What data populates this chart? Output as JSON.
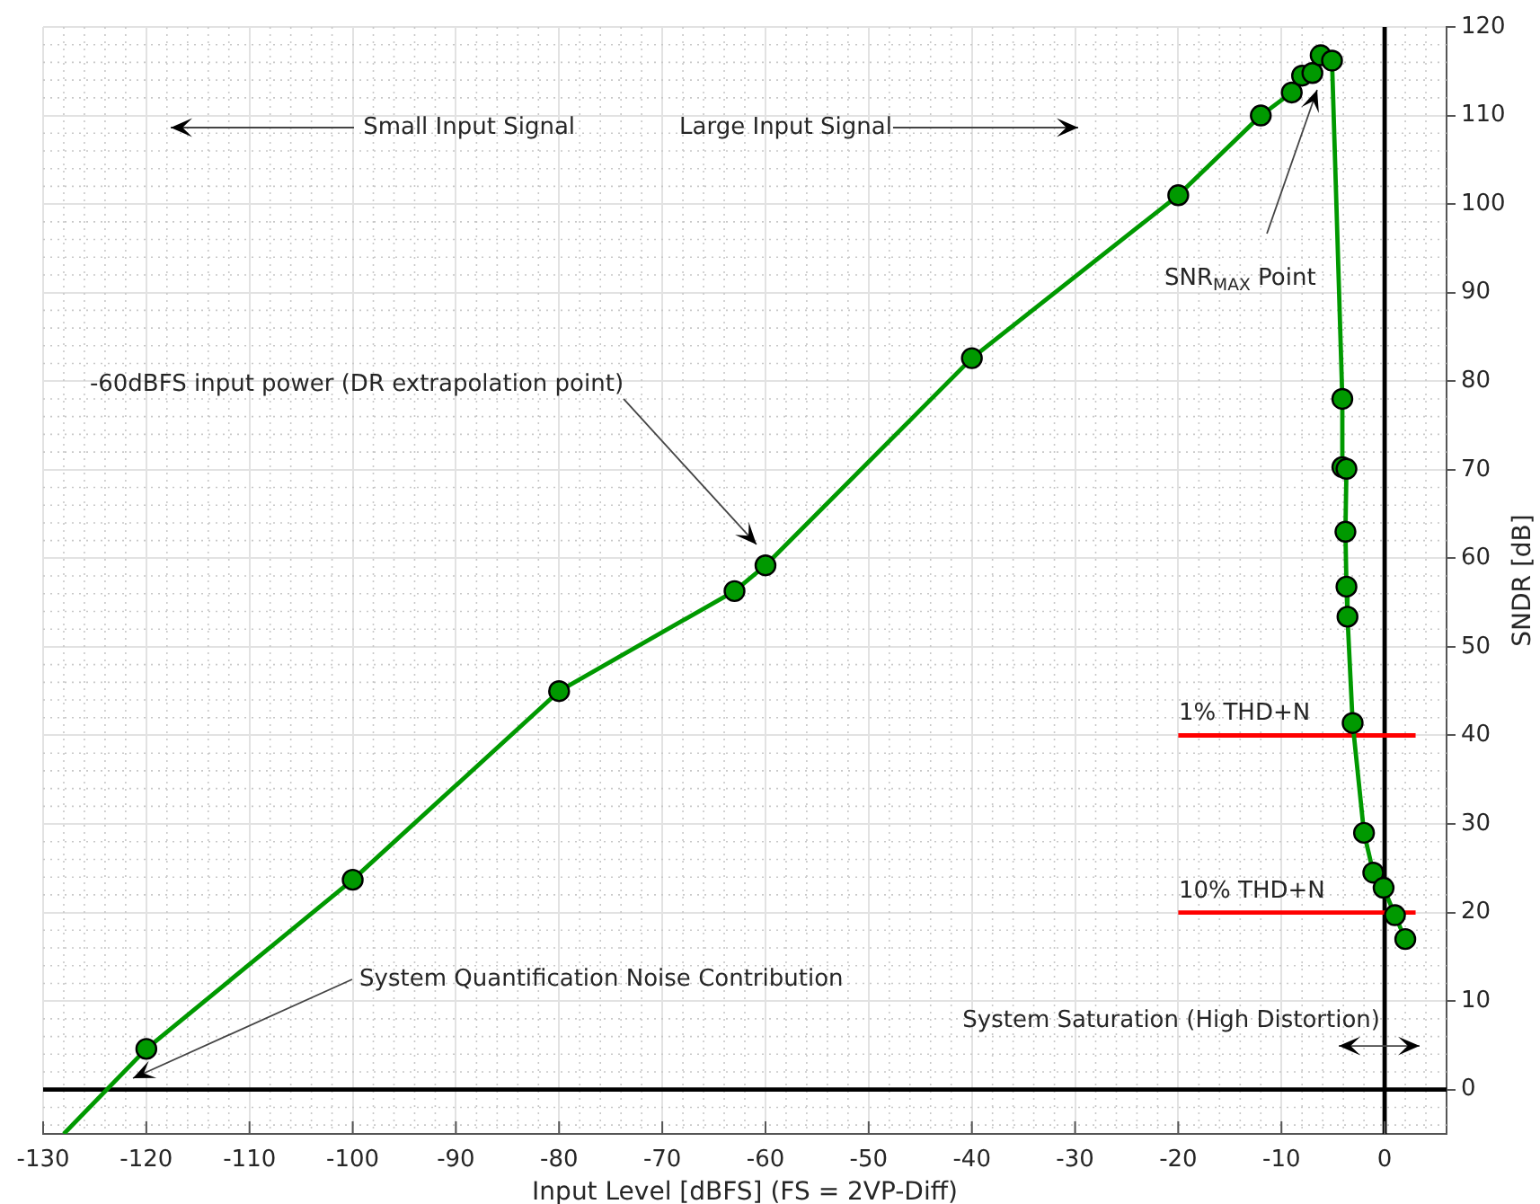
{
  "chart_data": {
    "type": "line",
    "xlabel": "Input Level [dBFS] (FS = 2VP-Diff)",
    "ylabel": "SNDR [dB]",
    "xlim": [
      -130,
      6
    ],
    "ylim": [
      -5,
      120
    ],
    "xticks": [
      -130,
      {
        "value": -128,
        "label": null
      },
      {
        "value": -126,
        "label": null
      },
      {
        "value": -124,
        "label": null
      },
      {
        "value": -122,
        "label": null
      },
      -120,
      {
        "value": -118,
        "label": null
      },
      {
        "value": -116,
        "label": null
      },
      {
        "value": -114,
        "label": null
      },
      {
        "value": -112,
        "label": null
      },
      -110,
      {
        "value": -108,
        "label": null
      },
      {
        "value": -106,
        "label": null
      },
      {
        "value": -104,
        "label": null
      },
      {
        "value": -102,
        "label": null
      },
      -100,
      {
        "value": -98,
        "label": null
      },
      {
        "value": -96,
        "label": null
      },
      {
        "value": -94,
        "label": null
      },
      {
        "value": -92,
        "label": null
      },
      -90,
      {
        "value": -88,
        "label": null
      },
      {
        "value": -86,
        "label": null
      },
      {
        "value": -84,
        "label": null
      },
      {
        "value": -82,
        "label": null
      },
      -80,
      {
        "value": -78,
        "label": null
      },
      {
        "value": -76,
        "label": null
      },
      {
        "value": -74,
        "label": null
      },
      {
        "value": -72,
        "label": null
      },
      -70,
      {
        "value": -68,
        "label": null
      },
      {
        "value": -66,
        "label": null
      },
      {
        "value": -64,
        "label": null
      },
      {
        "value": -62,
        "label": null
      },
      -60,
      {
        "value": -58,
        "label": null
      },
      {
        "value": -56,
        "label": null
      },
      {
        "value": -54,
        "label": null
      },
      {
        "value": -52,
        "label": null
      },
      -50,
      {
        "value": -48,
        "label": null
      },
      {
        "value": -46,
        "label": null
      },
      {
        "value": -44,
        "label": null
      },
      {
        "value": -42,
        "label": null
      },
      -40,
      {
        "value": -38,
        "label": null
      },
      {
        "value": -36,
        "label": null
      },
      {
        "value": -34,
        "label": null
      },
      {
        "value": -32,
        "label": null
      },
      -30,
      {
        "value": -28,
        "label": null
      },
      {
        "value": -26,
        "label": null
      },
      {
        "value": -24,
        "label": null
      },
      {
        "value": -22,
        "label": null
      },
      -20,
      {
        "value": -18,
        "label": null
      },
      {
        "value": -16,
        "label": null
      },
      {
        "value": -14,
        "label": null
      },
      {
        "value": -12,
        "label": null
      },
      -10,
      {
        "value": -8,
        "label": null
      },
      {
        "value": -6,
        "label": null
      },
      {
        "value": -4,
        "label": null
      },
      {
        "value": -2,
        "label": null
      },
      0,
      {
        "value": 2,
        "label": null
      },
      {
        "value": 4,
        "label": null
      }
    ],
    "yticks": [
      {
        "value": -4,
        "label": null
      },
      {
        "value": -2,
        "label": null
      },
      0,
      {
        "value": 2,
        "label": null
      },
      {
        "value": 4,
        "label": null
      },
      {
        "value": 6,
        "label": null
      },
      {
        "value": 8,
        "label": null
      },
      10,
      {
        "value": 12,
        "label": null
      },
      {
        "value": 14,
        "label": null
      },
      {
        "value": 16,
        "label": null
      },
      {
        "value": 18,
        "label": null
      },
      20,
      {
        "value": 22,
        "label": null
      },
      {
        "value": 24,
        "label": null
      },
      {
        "value": 26,
        "label": null
      },
      {
        "value": 28,
        "label": null
      },
      30,
      {
        "value": 32,
        "label": null
      },
      {
        "value": 34,
        "label": null
      },
      {
        "value": 36,
        "label": null
      },
      {
        "value": 38,
        "label": null
      },
      40,
      {
        "value": 42,
        "label": null
      },
      {
        "value": 44,
        "label": null
      },
      {
        "value": 46,
        "label": null
      },
      {
        "value": 48,
        "label": null
      },
      50,
      {
        "value": 52,
        "label": null
      },
      {
        "value": 54,
        "label": null
      },
      {
        "value": 56,
        "label": null
      },
      {
        "value": 58,
        "label": null
      },
      60,
      {
        "value": 62,
        "label": null
      },
      {
        "value": 64,
        "label": null
      },
      {
        "value": 66,
        "label": null
      },
      {
        "value": 68,
        "label": null
      },
      70,
      {
        "value": 72,
        "label": null
      },
      {
        "value": 74,
        "label": null
      },
      {
        "value": 76,
        "label": null
      },
      {
        "value": 78,
        "label": null
      },
      80,
      {
        "value": 82,
        "label": null
      },
      {
        "value": 84,
        "label": null
      },
      {
        "value": 86,
        "label": null
      },
      {
        "value": 88,
        "label": null
      },
      90,
      {
        "value": 92,
        "label": null
      },
      {
        "value": 94,
        "label": null
      },
      {
        "value": 96,
        "label": null
      },
      {
        "value": 98,
        "label": null
      },
      100,
      {
        "value": 102,
        "label": null
      },
      {
        "value": 104,
        "label": null
      },
      {
        "value": 106,
        "label": null
      },
      {
        "value": 108,
        "label": null
      },
      110,
      {
        "value": 112,
        "label": null
      },
      {
        "value": 114,
        "label": null
      },
      {
        "value": 116,
        "label": null
      },
      {
        "value": 118,
        "label": null
      },
      120
    ],
    "grid": true,
    "series": [
      {
        "color": "#009900",
        "marker": "circle",
        "x": [
          -120,
          -100,
          -80,
          -63,
          -60,
          -40,
          -20,
          -12,
          -9,
          -8,
          -7,
          -6.2,
          -5.1,
          -4.1,
          -4.1,
          -3.7,
          -3.8,
          -3.7,
          -3.6,
          -3.1,
          -2,
          -1.1,
          -0.1,
          1,
          2
        ],
        "values": [
          4.6,
          23.7,
          45,
          56.3,
          59.2,
          82.6,
          101,
          110,
          112.6,
          114.5,
          114.8,
          116.8,
          116.2,
          78,
          70.3,
          70.1,
          63,
          56.8,
          53.4,
          41.4,
          29,
          24.5,
          22.8,
          19.7,
          17
        ]
      },
      {
        "color": "#009900",
        "marker": "none",
        "x": [
          -128,
          -120
        ],
        "values": [
          -5,
          4.6
        ]
      },
      {
        "color": "#ff0000",
        "marker": "none",
        "x": [
          -20,
          3
        ],
        "values": [
          40,
          40
        ]
      },
      {
        "color": "#ff0000",
        "marker": "none",
        "x": [
          -20,
          3
        ],
        "values": [
          20,
          20
        ]
      },
      {
        "color": "#000000",
        "marker": "none",
        "x": [
          0,
          0
        ],
        "values": [
          -5,
          120
        ]
      },
      {
        "color": "#000000",
        "marker": "none",
        "x": [
          -130,
          6
        ],
        "values": [
          0,
          0
        ]
      }
    ],
    "annotations": [
      "Small Input Signal",
      "Large Input Signal",
      "SNR$_{MAX}$ Point",
      "-60dBFS input power (DR extrapolation point)",
      "System Quantification Noise Contribution",
      "System Saturation (High Distortion)",
      "1% THD+N",
      "10% THD+N"
    ]
  }
}
